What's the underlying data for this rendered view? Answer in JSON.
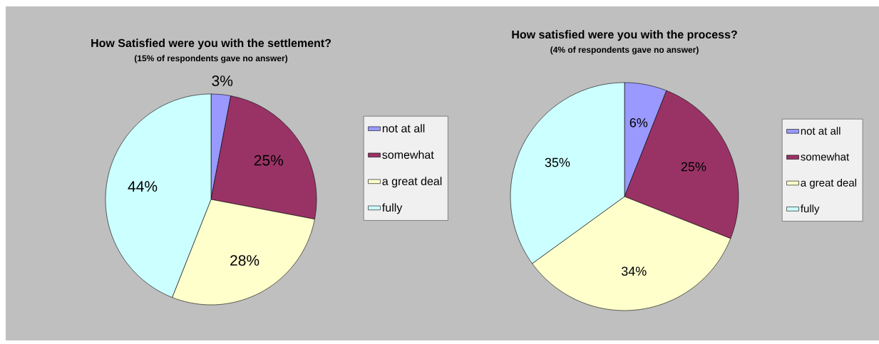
{
  "chart_data": [
    {
      "type": "pie",
      "title": "How Satisfied were you with the settlement?",
      "subtitle": "(15% of respondents gave no answer)",
      "categories": [
        "not at all",
        "somewhat",
        "a great deal",
        "fully"
      ],
      "values": [
        3,
        25,
        28,
        44
      ],
      "colors": [
        "#9999ff",
        "#993366",
        "#ffffcc",
        "#ccffff"
      ],
      "value_labels": [
        "3%",
        "25%",
        "28%",
        "44%"
      ],
      "legend": "right"
    },
    {
      "type": "pie",
      "title": "How satisfied were you with the process?",
      "subtitle": "(4% of respondents gave no answer)",
      "categories": [
        "not at all",
        "somewhat",
        "a great deal",
        "fully"
      ],
      "values": [
        6,
        25,
        34,
        35
      ],
      "colors": [
        "#9999ff",
        "#993366",
        "#ffffcc",
        "#ccffff"
      ],
      "value_labels": [
        "6%",
        "25%",
        "34%",
        "35%"
      ],
      "legend": "right"
    }
  ]
}
